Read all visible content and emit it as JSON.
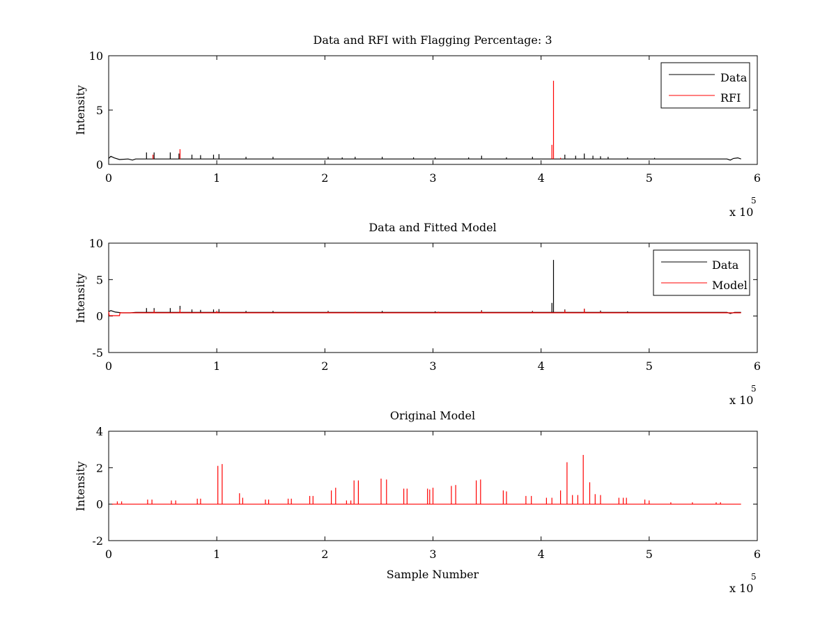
{
  "colors": {
    "data": "#000000",
    "rfi": "#ff0000",
    "model": "#ff0000",
    "axis": "#000000",
    "background": "#ffffff"
  },
  "chart_data": [
    {
      "type": "line",
      "title": "Data and RFI with Flagging Percentage: 3",
      "xlabel": "",
      "ylabel": "Intensity",
      "xlim": [
        0,
        600000
      ],
      "ylim": [
        0,
        10
      ],
      "xticks": [
        0,
        1,
        2,
        3,
        4,
        5,
        6
      ],
      "yticks": [
        0,
        5,
        10
      ],
      "x_multiplier": "x 10",
      "x_multiplier_exp": "5",
      "legend": {
        "placement": "top-right",
        "entries": [
          "Data",
          "RFI"
        ]
      },
      "series": [
        {
          "name": "Data",
          "color": "#000000",
          "baseline": 0.5,
          "points": [
            [
              0,
              0.55
            ],
            [
              2000,
              0.75
            ],
            [
              5000,
              0.6
            ],
            [
              10000,
              0.45
            ],
            [
              18000,
              0.5
            ],
            [
              22000,
              0.4
            ],
            [
              25000,
              0.5
            ],
            [
              572000,
              0.5
            ],
            [
              575000,
              0.4
            ],
            [
              578000,
              0.55
            ],
            [
              582000,
              0.6
            ],
            [
              585000,
              0.5
            ]
          ],
          "spikes": [
            [
              35000,
              1.1
            ],
            [
              42000,
              1.1
            ],
            [
              57000,
              1.1
            ],
            [
              65000,
              1.0
            ],
            [
              77000,
              0.9
            ],
            [
              85000,
              0.85
            ],
            [
              97000,
              0.9
            ],
            [
              102000,
              0.95
            ],
            [
              127000,
              0.7
            ],
            [
              152000,
              0.7
            ],
            [
              203000,
              0.7
            ],
            [
              216000,
              0.65
            ],
            [
              228000,
              0.7
            ],
            [
              253000,
              0.7
            ],
            [
              282000,
              0.65
            ],
            [
              302000,
              0.65
            ],
            [
              333000,
              0.65
            ],
            [
              345000,
              0.8
            ],
            [
              368000,
              0.65
            ],
            [
              392000,
              0.7
            ],
            [
              422000,
              0.9
            ],
            [
              432000,
              0.8
            ],
            [
              440000,
              1.0
            ],
            [
              448000,
              0.8
            ],
            [
              455000,
              0.75
            ],
            [
              462000,
              0.7
            ],
            [
              480000,
              0.65
            ],
            [
              505000,
              0.6
            ]
          ]
        },
        {
          "name": "RFI",
          "color": "#ff0000",
          "baseline": 0.5,
          "spikes": [
            [
              41000,
              0.9
            ],
            [
              66000,
              1.4
            ],
            [
              410000,
              1.8
            ],
            [
              411500,
              7.7
            ],
            [
              418000,
              0.6
            ]
          ]
        }
      ]
    },
    {
      "type": "line",
      "title": "Data and Fitted Model",
      "xlabel": "",
      "ylabel": "Intensity",
      "xlim": [
        0,
        600000
      ],
      "ylim": [
        -5,
        10
      ],
      "xticks": [
        0,
        1,
        2,
        3,
        4,
        5,
        6
      ],
      "yticks": [
        -5,
        0,
        5,
        10
      ],
      "x_multiplier": "x 10",
      "x_multiplier_exp": "5",
      "legend": {
        "placement": "top-right",
        "entries": [
          "Data",
          "Model"
        ]
      },
      "series": [
        {
          "name": "Data",
          "color": "#000000",
          "baseline": 0.5,
          "points": [
            [
              0,
              0.6
            ],
            [
              2000,
              0.75
            ],
            [
              6000,
              0.55
            ],
            [
              12000,
              0.45
            ],
            [
              20000,
              0.45
            ],
            [
              25000,
              0.5
            ],
            [
              572000,
              0.5
            ],
            [
              575000,
              0.35
            ],
            [
              579000,
              0.5
            ],
            [
              585000,
              0.5
            ]
          ],
          "spikes": [
            [
              35000,
              1.1
            ],
            [
              42000,
              1.1
            ],
            [
              57000,
              1.1
            ],
            [
              66000,
              1.4
            ],
            [
              77000,
              0.9
            ],
            [
              85000,
              0.85
            ],
            [
              97000,
              0.9
            ],
            [
              102000,
              0.95
            ],
            [
              127000,
              0.7
            ],
            [
              152000,
              0.7
            ],
            [
              203000,
              0.7
            ],
            [
              253000,
              0.7
            ],
            [
              302000,
              0.65
            ],
            [
              345000,
              0.8
            ],
            [
              392000,
              0.7
            ],
            [
              410000,
              1.8
            ],
            [
              411500,
              7.7
            ],
            [
              422000,
              0.9
            ],
            [
              440000,
              1.0
            ],
            [
              455000,
              0.75
            ],
            [
              480000,
              0.65
            ]
          ]
        },
        {
          "name": "Model",
          "color": "#ff0000",
          "baseline": 0.45,
          "points": [
            [
              0,
              0.6
            ],
            [
              500,
              0.05
            ],
            [
              10000,
              0.05
            ],
            [
              10500,
              0.45
            ],
            [
              585000,
              0.45
            ]
          ],
          "spikes": [
            [
              42000,
              0.8
            ],
            [
              66000,
              0.9
            ],
            [
              100000,
              0.7
            ],
            [
              203000,
              0.6
            ],
            [
              228000,
              0.6
            ],
            [
              305000,
              0.6
            ],
            [
              345000,
              0.7
            ],
            [
              392000,
              0.6
            ],
            [
              422000,
              0.8
            ],
            [
              440000,
              1.0
            ],
            [
              455000,
              0.6
            ]
          ]
        }
      ]
    },
    {
      "type": "line",
      "title": "Original Model",
      "xlabel": "Sample Number",
      "ylabel": "Intensity",
      "xlim": [
        0,
        600000
      ],
      "ylim": [
        -2,
        4
      ],
      "xticks": [
        0,
        1,
        2,
        3,
        4,
        5,
        6
      ],
      "yticks": [
        -2,
        0,
        2,
        4
      ],
      "x_multiplier": "x 10",
      "x_multiplier_exp": "5",
      "series": [
        {
          "name": "Model",
          "color": "#ff0000",
          "baseline": 0.0,
          "xrange": [
            3000,
            585000
          ],
          "spikes": [
            [
              8000,
              0.15
            ],
            [
              12000,
              0.15
            ],
            [
              36000,
              0.25
            ],
            [
              40000,
              0.25
            ],
            [
              58000,
              0.2
            ],
            [
              62000,
              0.2
            ],
            [
              82000,
              0.3
            ],
            [
              85000,
              0.3
            ],
            [
              101000,
              2.1
            ],
            [
              105000,
              2.2
            ],
            [
              121000,
              0.6
            ],
            [
              124000,
              0.35
            ],
            [
              145000,
              0.25
            ],
            [
              148000,
              0.25
            ],
            [
              166000,
              0.3
            ],
            [
              169000,
              0.3
            ],
            [
              186000,
              0.45
            ],
            [
              189000,
              0.45
            ],
            [
              206000,
              0.75
            ],
            [
              210000,
              0.9
            ],
            [
              220000,
              0.2
            ],
            [
              224000,
              0.2
            ],
            [
              227000,
              1.3
            ],
            [
              231000,
              1.3
            ],
            [
              252000,
              1.4
            ],
            [
              257000,
              1.35
            ],
            [
              273000,
              0.85
            ],
            [
              276000,
              0.85
            ],
            [
              295000,
              0.85
            ],
            [
              297000,
              0.8
            ],
            [
              300000,
              0.9
            ],
            [
              317000,
              1.0
            ],
            [
              321000,
              1.05
            ],
            [
              340000,
              1.3
            ],
            [
              344000,
              1.35
            ],
            [
              365000,
              0.75
            ],
            [
              368000,
              0.7
            ],
            [
              386000,
              0.45
            ],
            [
              391000,
              0.45
            ],
            [
              405000,
              0.35
            ],
            [
              410000,
              0.35
            ],
            [
              418000,
              0.75
            ],
            [
              424000,
              2.3
            ],
            [
              429000,
              0.5
            ],
            [
              434000,
              0.5
            ],
            [
              439000,
              2.7
            ],
            [
              445000,
              1.2
            ],
            [
              450000,
              0.55
            ],
            [
              455000,
              0.5
            ],
            [
              472000,
              0.35
            ],
            [
              476000,
              0.35
            ],
            [
              479000,
              0.35
            ],
            [
              496000,
              0.25
            ],
            [
              500000,
              0.2
            ],
            [
              520000,
              0.1
            ],
            [
              540000,
              0.1
            ],
            [
              562000,
              0.1
            ],
            [
              566000,
              0.1
            ]
          ]
        }
      ]
    }
  ]
}
